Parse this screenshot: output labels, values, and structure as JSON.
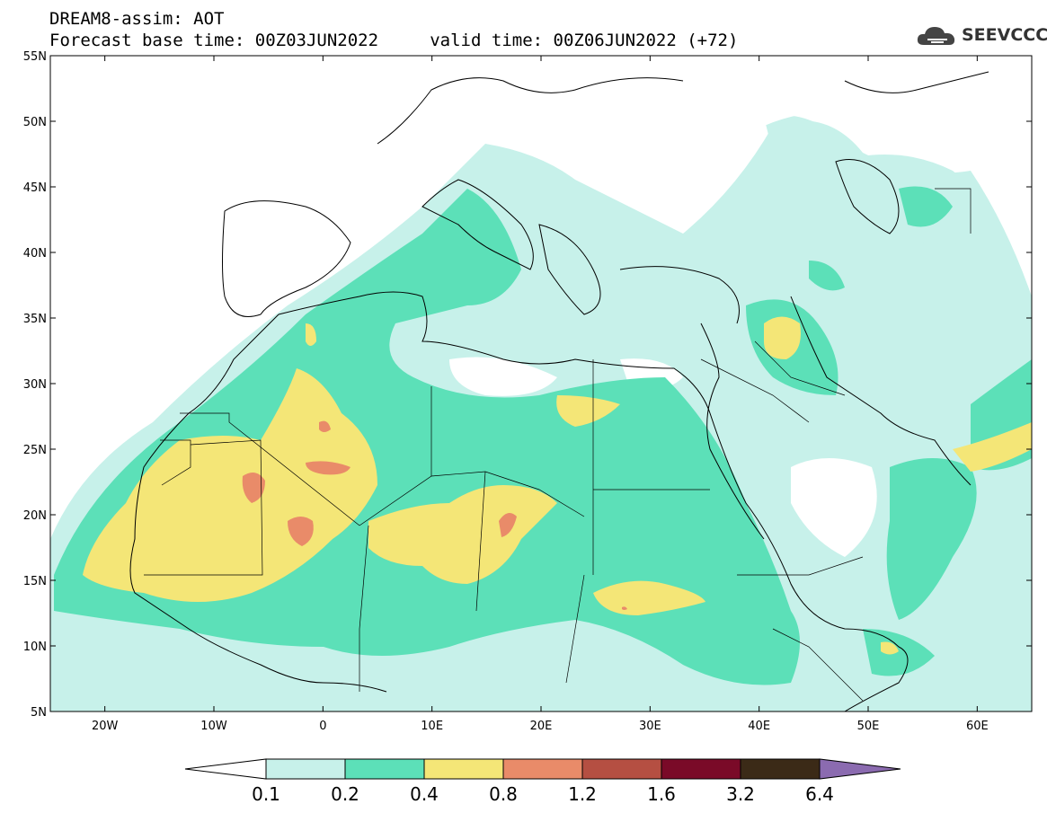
{
  "title_line1": "DREAM8-assim: AOT",
  "title_line2": "Forecast base time: 00Z03JUN2022     valid time: 00Z06JUN2022 (+72)",
  "logo_text": "SEEVCCC",
  "logo_icon": "cloud-icon",
  "map": {
    "lon_range": [
      -25,
      65
    ],
    "lat_range": [
      5,
      55
    ],
    "lat_ticks": [
      "55N",
      "50N",
      "45N",
      "40N",
      "35N",
      "30N",
      "25N",
      "20N",
      "15N",
      "10N",
      "5N"
    ],
    "lat_values": [
      55,
      50,
      45,
      40,
      35,
      30,
      25,
      20,
      15,
      10,
      5
    ],
    "lon_ticks": [
      "20W",
      "10W",
      "0",
      "10E",
      "20E",
      "30E",
      "40E",
      "50E",
      "60E"
    ],
    "lon_values": [
      -20,
      -10,
      0,
      10,
      20,
      30,
      40,
      50,
      60
    ]
  },
  "colorbar": {
    "labels": [
      "0.1",
      "0.2",
      "0.4",
      "0.8",
      "1.2",
      "1.6",
      "3.2",
      "6.4"
    ],
    "colors": [
      "#ffffff",
      "#c7f1ea",
      "#5ce0b8",
      "#f4e677",
      "#e98b69",
      "#b54f42",
      "#7a0a28",
      "#3b2a17",
      "#8b6bb0"
    ]
  }
}
